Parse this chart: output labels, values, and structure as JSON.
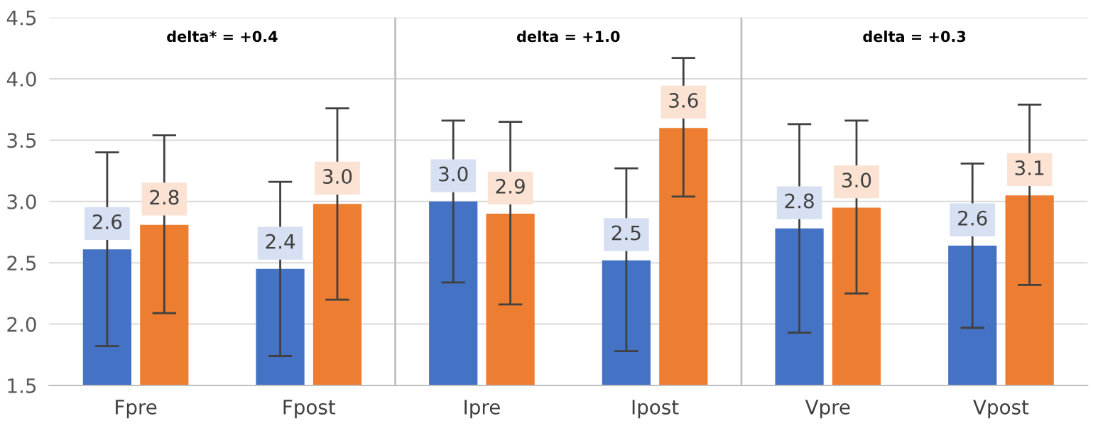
{
  "chart_data": {
    "type": "bar",
    "categories": [
      "Fpre",
      "Fpost",
      "Ipre",
      "Ipost",
      "Vpre",
      "Vpost"
    ],
    "series": [
      {
        "color": "#4472c4",
        "values": [
          2.61,
          2.45,
          3.0,
          2.52,
          2.78,
          2.64
        ],
        "value_labels": [
          "2.6",
          "2.4",
          "3.0",
          "2.5",
          "2.8",
          "2.6"
        ],
        "errors": [
          [
            1.82,
            3.4
          ],
          [
            1.74,
            3.16
          ],
          [
            2.34,
            3.66
          ],
          [
            1.78,
            3.27
          ],
          [
            1.93,
            3.63
          ],
          [
            1.97,
            3.31
          ]
        ]
      },
      {
        "color": "#ed7d31",
        "values": [
          2.81,
          2.98,
          2.9,
          3.6,
          2.95,
          3.05
        ],
        "value_labels": [
          "2.8",
          "3.0",
          "2.9",
          "3.6",
          "3.0",
          "3.1"
        ],
        "errors": [
          [
            2.09,
            3.54
          ],
          [
            2.2,
            3.76
          ],
          [
            2.16,
            3.65
          ],
          [
            3.04,
            4.17
          ],
          [
            2.25,
            3.66
          ],
          [
            2.32,
            3.79
          ]
        ]
      }
    ],
    "annotations": [
      "delta* = +0.4",
      "delta = +1.0",
      "delta = +0.3"
    ],
    "ylim": [
      1.5,
      4.5
    ],
    "yticks": [
      1.5,
      {
        "value": 2,
        "label": "2.0"
      },
      2.5,
      {
        "value": 3,
        "label": "3.0"
      },
      3.5,
      {
        "value": 4,
        "label": "4.0"
      },
      4.5
    ],
    "grid": "y",
    "legend": false
  }
}
